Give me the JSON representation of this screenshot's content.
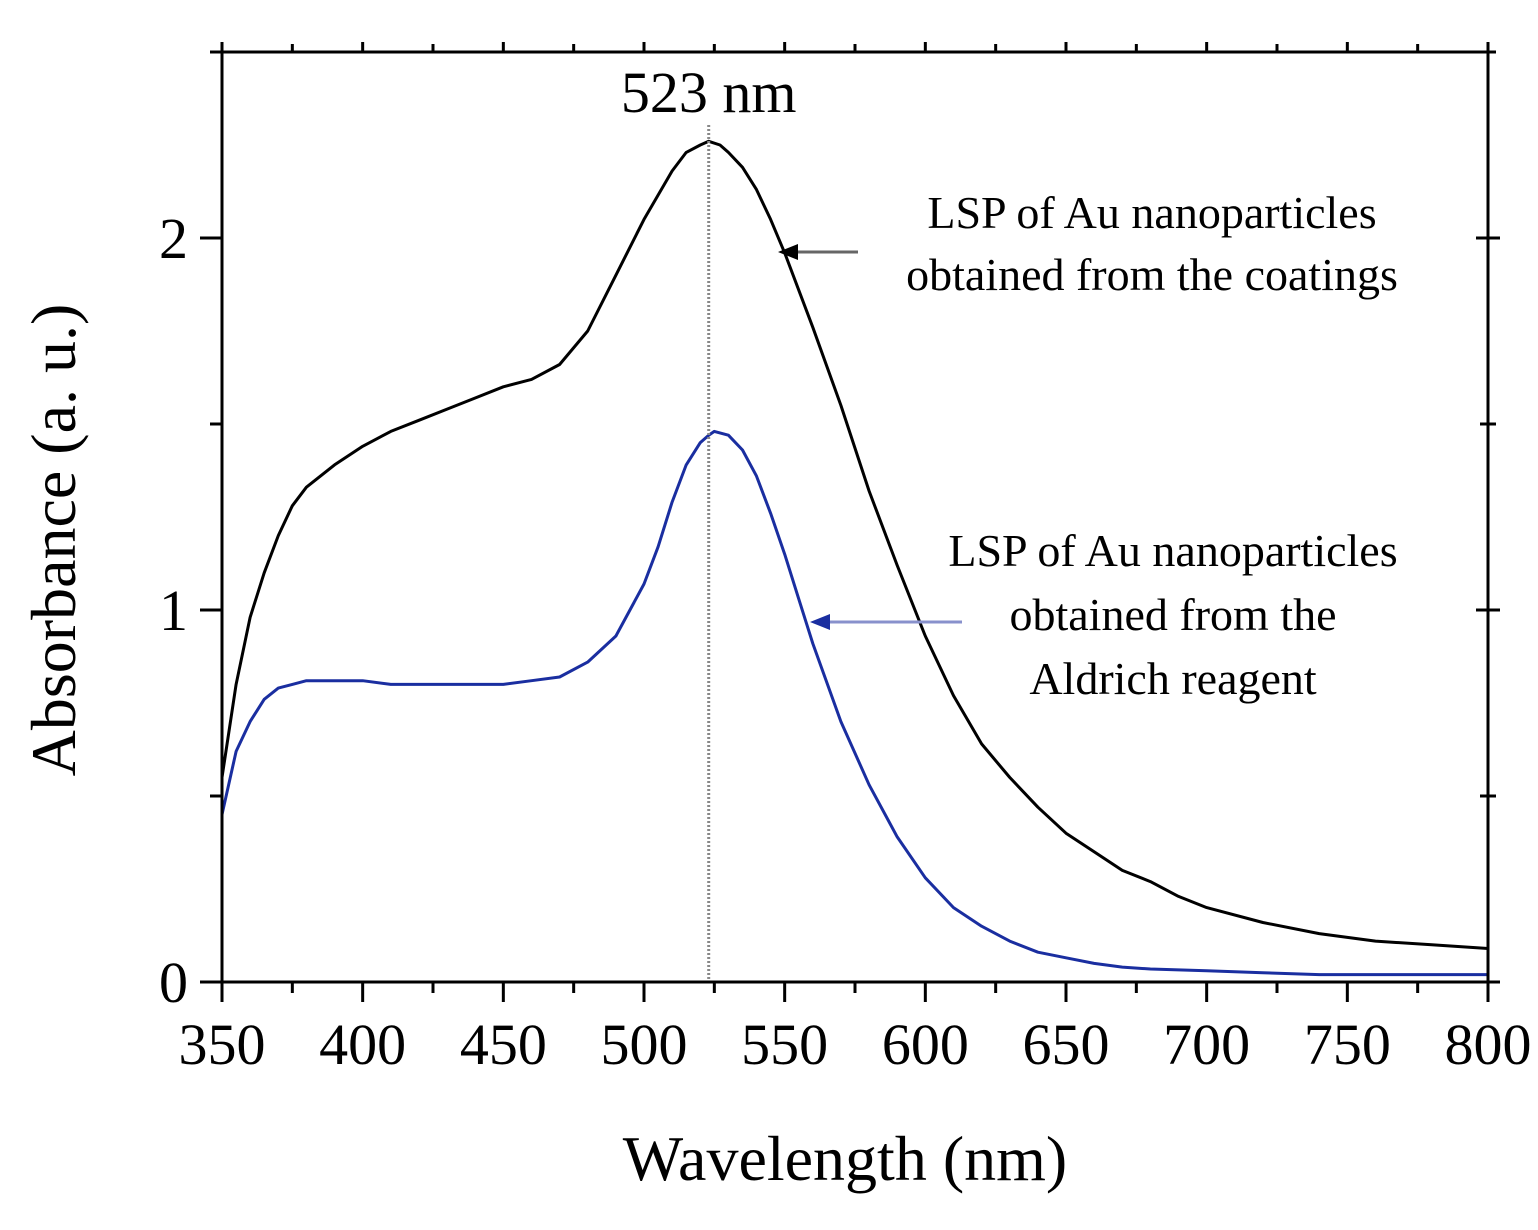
{
  "chart_data": {
    "type": "line",
    "title": "",
    "xlabel": "Wavelength (nm)",
    "ylabel": "Absorbance (a. u.)",
    "xlim": [
      350,
      800
    ],
    "ylim": [
      0,
      2.5
    ],
    "x_ticks": [
      "350",
      "400",
      "450",
      "500",
      "550",
      "600",
      "650",
      "700",
      "750",
      "800"
    ],
    "y_ticks": [
      "0",
      "1",
      "2"
    ],
    "grid": false,
    "peak_marker": {
      "x": 523,
      "label": "523 nm"
    },
    "series": [
      {
        "name": "LSP of Au nanoparticles obtained from the coatings",
        "color": "#000000",
        "x": [
          350,
          355,
          360,
          365,
          370,
          375,
          380,
          390,
          400,
          410,
          420,
          430,
          440,
          450,
          460,
          470,
          480,
          490,
          500,
          510,
          515,
          520,
          523,
          527,
          530,
          535,
          540,
          545,
          550,
          560,
          570,
          580,
          590,
          600,
          610,
          620,
          630,
          640,
          650,
          660,
          670,
          680,
          690,
          700,
          720,
          740,
          760,
          780,
          800
        ],
        "y": [
          0.55,
          0.8,
          0.98,
          1.1,
          1.2,
          1.28,
          1.33,
          1.39,
          1.44,
          1.48,
          1.51,
          1.54,
          1.57,
          1.6,
          1.62,
          1.66,
          1.75,
          1.9,
          2.05,
          2.18,
          2.23,
          2.25,
          2.26,
          2.25,
          2.23,
          2.19,
          2.13,
          2.05,
          1.96,
          1.76,
          1.55,
          1.32,
          1.12,
          0.93,
          0.77,
          0.64,
          0.55,
          0.47,
          0.4,
          0.35,
          0.3,
          0.27,
          0.23,
          0.2,
          0.16,
          0.13,
          0.11,
          0.1,
          0.09
        ]
      },
      {
        "name": "LSP of Au nanoparticles obtained from the Aldrich reagent",
        "color": "#1a2ea0",
        "x": [
          350,
          355,
          360,
          365,
          370,
          375,
          380,
          390,
          400,
          410,
          420,
          430,
          440,
          450,
          460,
          470,
          480,
          490,
          500,
          505,
          510,
          515,
          520,
          523,
          525,
          530,
          535,
          540,
          545,
          550,
          555,
          560,
          570,
          580,
          590,
          600,
          610,
          620,
          630,
          640,
          650,
          660,
          670,
          680,
          700,
          720,
          740,
          760,
          780,
          800
        ],
        "y": [
          0.45,
          0.62,
          0.7,
          0.76,
          0.79,
          0.8,
          0.81,
          0.81,
          0.81,
          0.8,
          0.8,
          0.8,
          0.8,
          0.8,
          0.81,
          0.82,
          0.86,
          0.93,
          1.07,
          1.17,
          1.29,
          1.39,
          1.45,
          1.47,
          1.48,
          1.47,
          1.43,
          1.36,
          1.26,
          1.15,
          1.03,
          0.91,
          0.7,
          0.53,
          0.39,
          0.28,
          0.2,
          0.15,
          0.11,
          0.08,
          0.065,
          0.05,
          0.04,
          0.035,
          0.03,
          0.025,
          0.02,
          0.02,
          0.02,
          0.02
        ]
      }
    ],
    "annotations": [
      {
        "lines": [
          "LSP of Au nanoparticles",
          "obtained from the coatings"
        ],
        "color": "#000000"
      },
      {
        "lines": [
          "LSP of Au nanoparticles",
          "obtained from the",
          "Aldrich reagent"
        ],
        "color": "#1a2ea0"
      }
    ]
  }
}
